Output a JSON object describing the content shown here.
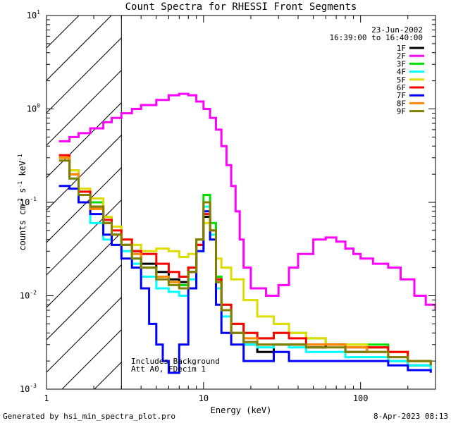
{
  "chart_data": {
    "type": "line",
    "title": "Count Spectra for RHESSI Front Segments",
    "xlabel": "Energy (keV)",
    "ylabel_main": "counts cm",
    "ylabel_sup1": "-2",
    "ylabel_mid": " s",
    "ylabel_sup2": "-1",
    "ylabel_end": " keV",
    "ylabel_sup3": "-1",
    "xscale": "log",
    "yscale": "log",
    "xlim": [
      1,
      300
    ],
    "ylim": [
      0.001,
      10
    ],
    "x_ticks": [
      {
        "value": 1,
        "label": "1"
      },
      {
        "value": 10,
        "label": "10"
      },
      {
        "value": 100,
        "label": "100"
      }
    ],
    "y_ticks": [
      {
        "value": 0.001,
        "base": "10",
        "exp": "-3"
      },
      {
        "value": 0.01,
        "base": "10",
        "exp": "-2"
      },
      {
        "value": 0.1,
        "base": "10",
        "exp": "-1"
      },
      {
        "value": 1,
        "base": "10",
        "exp": "0"
      },
      {
        "value": 10,
        "base": "10",
        "exp": "1"
      }
    ],
    "hatched_region": {
      "x_from": 1,
      "x_to": 3
    },
    "date": "23-Jun-2002",
    "time_range": "16:39:00 to 16:40:00",
    "annotation_lines": [
      "Includes Background",
      "Att A0, FDecim 1"
    ],
    "series": [
      {
        "name": "1F",
        "color": "#000000",
        "points": [
          [
            1.2,
            0.3
          ],
          [
            1.4,
            0.2
          ],
          [
            1.6,
            0.12
          ],
          [
            1.9,
            0.09
          ],
          [
            2.3,
            0.06
          ],
          [
            2.6,
            0.045
          ],
          [
            3,
            0.035
          ],
          [
            3.5,
            0.03
          ],
          [
            4,
            0.022
          ],
          [
            5,
            0.018
          ],
          [
            6,
            0.015
          ],
          [
            7,
            0.014
          ],
          [
            8,
            0.018
          ],
          [
            9,
            0.035
          ],
          [
            10,
            0.07
          ],
          [
            11,
            0.05
          ],
          [
            12,
            0.015
          ],
          [
            13,
            0.007
          ],
          [
            15,
            0.004
          ],
          [
            18,
            0.003
          ],
          [
            22,
            0.0025
          ],
          [
            28,
            0.003
          ],
          [
            35,
            0.003
          ],
          [
            45,
            0.0028
          ],
          [
            60,
            0.003
          ],
          [
            80,
            0.0025
          ],
          [
            110,
            0.0028
          ],
          [
            150,
            0.002
          ],
          [
            200,
            0.0018
          ],
          [
            280,
            0.0018
          ]
        ]
      },
      {
        "name": "2F",
        "color": "#ff00ff",
        "points": [
          [
            1.2,
            0.45
          ],
          [
            1.4,
            0.5
          ],
          [
            1.6,
            0.55
          ],
          [
            1.9,
            0.62
          ],
          [
            2.3,
            0.72
          ],
          [
            2.6,
            0.8
          ],
          [
            3,
            0.9
          ],
          [
            3.5,
            1.0
          ],
          [
            4,
            1.1
          ],
          [
            5,
            1.25
          ],
          [
            6,
            1.4
          ],
          [
            7,
            1.45
          ],
          [
            8,
            1.4
          ],
          [
            9,
            1.2
          ],
          [
            10,
            1.0
          ],
          [
            11,
            0.8
          ],
          [
            12,
            0.6
          ],
          [
            13,
            0.4
          ],
          [
            14,
            0.25
          ],
          [
            15,
            0.15
          ],
          [
            16,
            0.08
          ],
          [
            17,
            0.04
          ],
          [
            18,
            0.02
          ],
          [
            20,
            0.012
          ],
          [
            25,
            0.01
          ],
          [
            30,
            0.013
          ],
          [
            35,
            0.02
          ],
          [
            40,
            0.028
          ],
          [
            50,
            0.04
          ],
          [
            60,
            0.042
          ],
          [
            70,
            0.038
          ],
          [
            80,
            0.032
          ],
          [
            90,
            0.028
          ],
          [
            100,
            0.025
          ],
          [
            120,
            0.022
          ],
          [
            150,
            0.02
          ],
          [
            180,
            0.015
          ],
          [
            220,
            0.01
          ],
          [
            260,
            0.008
          ],
          [
            300,
            0.007
          ]
        ]
      },
      {
        "name": "3F",
        "color": "#00dd00",
        "points": [
          [
            1.2,
            0.3
          ],
          [
            1.4,
            0.22
          ],
          [
            1.6,
            0.13
          ],
          [
            1.9,
            0.1
          ],
          [
            2.3,
            0.06
          ],
          [
            2.6,
            0.045
          ],
          [
            3,
            0.035
          ],
          [
            3.5,
            0.025
          ],
          [
            4,
            0.02
          ],
          [
            5,
            0.016
          ],
          [
            6,
            0.014
          ],
          [
            7,
            0.013
          ],
          [
            8,
            0.02
          ],
          [
            9,
            0.04
          ],
          [
            10,
            0.12
          ],
          [
            11,
            0.06
          ],
          [
            12,
            0.016
          ],
          [
            13,
            0.008
          ],
          [
            15,
            0.005
          ],
          [
            18,
            0.004
          ],
          [
            22,
            0.0035
          ],
          [
            28,
            0.004
          ],
          [
            35,
            0.004
          ],
          [
            45,
            0.0035
          ],
          [
            60,
            0.003
          ],
          [
            80,
            0.003
          ],
          [
            110,
            0.003
          ],
          [
            150,
            0.0025
          ],
          [
            200,
            0.002
          ],
          [
            280,
            0.0018
          ]
        ]
      },
      {
        "name": "4F",
        "color": "#00ffff",
        "points": [
          [
            1.2,
            0.32
          ],
          [
            1.4,
            0.18
          ],
          [
            1.6,
            0.1
          ],
          [
            1.9,
            0.06
          ],
          [
            2.3,
            0.04
          ],
          [
            2.6,
            0.035
          ],
          [
            3,
            0.03
          ],
          [
            3.5,
            0.022
          ],
          [
            4,
            0.016
          ],
          [
            5,
            0.012
          ],
          [
            6,
            0.011
          ],
          [
            7,
            0.01
          ],
          [
            8,
            0.015
          ],
          [
            9,
            0.03
          ],
          [
            10,
            0.09
          ],
          [
            11,
            0.045
          ],
          [
            12,
            0.012
          ],
          [
            13,
            0.006
          ],
          [
            15,
            0.004
          ],
          [
            18,
            0.003
          ],
          [
            22,
            0.0028
          ],
          [
            28,
            0.003
          ],
          [
            35,
            0.0028
          ],
          [
            45,
            0.0025
          ],
          [
            60,
            0.0025
          ],
          [
            80,
            0.0022
          ],
          [
            110,
            0.0022
          ],
          [
            150,
            0.002
          ],
          [
            200,
            0.0018
          ],
          [
            280,
            0.0016
          ]
        ]
      },
      {
        "name": "5F",
        "color": "#dddd00",
        "points": [
          [
            1.2,
            0.3
          ],
          [
            1.4,
            0.22
          ],
          [
            1.6,
            0.14
          ],
          [
            1.9,
            0.11
          ],
          [
            2.3,
            0.07
          ],
          [
            2.6,
            0.055
          ],
          [
            3,
            0.04
          ],
          [
            3.5,
            0.035
          ],
          [
            4,
            0.03
          ],
          [
            5,
            0.032
          ],
          [
            6,
            0.03
          ],
          [
            7,
            0.026
          ],
          [
            8,
            0.028
          ],
          [
            9,
            0.035
          ],
          [
            10,
            0.06
          ],
          [
            11,
            0.04
          ],
          [
            12,
            0.025
          ],
          [
            13,
            0.02
          ],
          [
            15,
            0.015
          ],
          [
            18,
            0.009
          ],
          [
            22,
            0.006
          ],
          [
            28,
            0.005
          ],
          [
            35,
            0.004
          ],
          [
            45,
            0.0035
          ],
          [
            60,
            0.003
          ],
          [
            80,
            0.003
          ],
          [
            110,
            0.0028
          ],
          [
            150,
            0.0025
          ],
          [
            200,
            0.002
          ],
          [
            280,
            0.0018
          ]
        ]
      },
      {
        "name": "6F",
        "color": "#ff0000",
        "points": [
          [
            1.2,
            0.32
          ],
          [
            1.4,
            0.2
          ],
          [
            1.6,
            0.13
          ],
          [
            1.9,
            0.09
          ],
          [
            2.3,
            0.065
          ],
          [
            2.6,
            0.05
          ],
          [
            3,
            0.04
          ],
          [
            3.5,
            0.03
          ],
          [
            4,
            0.028
          ],
          [
            5,
            0.022
          ],
          [
            6,
            0.018
          ],
          [
            7,
            0.016
          ],
          [
            8,
            0.02
          ],
          [
            9,
            0.035
          ],
          [
            10,
            0.075
          ],
          [
            11,
            0.05
          ],
          [
            12,
            0.015
          ],
          [
            13,
            0.008
          ],
          [
            15,
            0.005
          ],
          [
            18,
            0.004
          ],
          [
            22,
            0.0035
          ],
          [
            28,
            0.004
          ],
          [
            35,
            0.0035
          ],
          [
            45,
            0.003
          ],
          [
            60,
            0.003
          ],
          [
            80,
            0.0028
          ],
          [
            110,
            0.0028
          ],
          [
            150,
            0.0025
          ],
          [
            200,
            0.002
          ],
          [
            280,
            0.0018
          ]
        ]
      },
      {
        "name": "7F",
        "color": "#0000ff",
        "points": [
          [
            1.2,
            0.15
          ],
          [
            1.4,
            0.14
          ],
          [
            1.6,
            0.1
          ],
          [
            1.9,
            0.075
          ],
          [
            2.3,
            0.045
          ],
          [
            2.6,
            0.035
          ],
          [
            3,
            0.025
          ],
          [
            3.5,
            0.02
          ],
          [
            4,
            0.012
          ],
          [
            4.5,
            0.005
          ],
          [
            5,
            0.003
          ],
          [
            5.5,
            0.002
          ],
          [
            6,
            0.0015
          ],
          [
            7,
            0.003
          ],
          [
            8,
            0.012
          ],
          [
            9,
            0.03
          ],
          [
            10,
            0.08
          ],
          [
            11,
            0.04
          ],
          [
            12,
            0.008
          ],
          [
            13,
            0.004
          ],
          [
            15,
            0.003
          ],
          [
            18,
            0.002
          ],
          [
            22,
            0.002
          ],
          [
            28,
            0.0025
          ],
          [
            35,
            0.002
          ],
          [
            45,
            0.002
          ],
          [
            60,
            0.002
          ],
          [
            80,
            0.002
          ],
          [
            110,
            0.002
          ],
          [
            150,
            0.0018
          ],
          [
            200,
            0.0016
          ],
          [
            280,
            0.0015
          ]
        ]
      },
      {
        "name": "8F",
        "color": "#ff8800",
        "points": [
          [
            1.2,
            0.3
          ],
          [
            1.4,
            0.2
          ],
          [
            1.6,
            0.12
          ],
          [
            1.9,
            0.085
          ],
          [
            2.3,
            0.06
          ],
          [
            2.6,
            0.045
          ],
          [
            3,
            0.035
          ],
          [
            3.5,
            0.028
          ],
          [
            4,
            0.02
          ],
          [
            5,
            0.016
          ],
          [
            6,
            0.014
          ],
          [
            7,
            0.012
          ],
          [
            8,
            0.018
          ],
          [
            9,
            0.04
          ],
          [
            10,
            0.1
          ],
          [
            11,
            0.05
          ],
          [
            12,
            0.014
          ],
          [
            13,
            0.007
          ],
          [
            15,
            0.004
          ],
          [
            18,
            0.0035
          ],
          [
            22,
            0.003
          ],
          [
            28,
            0.003
          ],
          [
            35,
            0.003
          ],
          [
            45,
            0.003
          ],
          [
            60,
            0.003
          ],
          [
            80,
            0.0028
          ],
          [
            110,
            0.0025
          ],
          [
            150,
            0.0022
          ],
          [
            200,
            0.002
          ],
          [
            280,
            0.0018
          ]
        ]
      },
      {
        "name": "9F",
        "color": "#808000",
        "points": [
          [
            1.2,
            0.28
          ],
          [
            1.4,
            0.18
          ],
          [
            1.6,
            0.12
          ],
          [
            1.9,
            0.09
          ],
          [
            2.3,
            0.06
          ],
          [
            2.6,
            0.045
          ],
          [
            3,
            0.035
          ],
          [
            3.5,
            0.025
          ],
          [
            4,
            0.02
          ],
          [
            5,
            0.015
          ],
          [
            6,
            0.013
          ],
          [
            7,
            0.012
          ],
          [
            8,
            0.018
          ],
          [
            9,
            0.04
          ],
          [
            10,
            0.1
          ],
          [
            11,
            0.05
          ],
          [
            12,
            0.014
          ],
          [
            13,
            0.007
          ],
          [
            15,
            0.004
          ],
          [
            18,
            0.0032
          ],
          [
            22,
            0.003
          ],
          [
            28,
            0.003
          ],
          [
            35,
            0.003
          ],
          [
            45,
            0.0028
          ],
          [
            60,
            0.0028
          ],
          [
            80,
            0.0025
          ],
          [
            110,
            0.0025
          ],
          [
            150,
            0.0022
          ],
          [
            200,
            0.002
          ],
          [
            280,
            0.0018
          ]
        ]
      }
    ]
  },
  "footer": {
    "generated_by": "Generated by hsi_min_spectra_plot.pro",
    "timestamp": "8-Apr-2023 08:13"
  }
}
